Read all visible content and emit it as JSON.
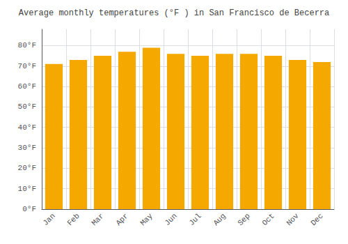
{
  "chart_data": {
    "type": "bar",
    "title": "Average monthly temperatures (°F ) in San Francisco de Becerra",
    "categories": [
      "Jan",
      "Feb",
      "Mar",
      "Apr",
      "May",
      "Jun",
      "Jul",
      "Aug",
      "Sep",
      "Oct",
      "Nov",
      "Dec"
    ],
    "values": [
      71,
      73,
      75,
      77,
      79,
      76,
      75,
      76,
      76,
      75,
      73,
      72
    ],
    "color": "#F5A800",
    "ylim": [
      0,
      88
    ],
    "yticks": [
      {
        "value": 0,
        "label": "0°F"
      },
      {
        "value": 10,
        "label": "10°F"
      },
      {
        "value": 20,
        "label": "20°F"
      },
      {
        "value": 30,
        "label": "30°F"
      },
      {
        "value": 40,
        "label": "40°F"
      },
      {
        "value": 50,
        "label": "50°F"
      },
      {
        "value": 60,
        "label": "60°F"
      },
      {
        "value": 70,
        "label": "70°F"
      },
      {
        "value": 80,
        "label": "80°F"
      }
    ],
    "grid": true
  }
}
